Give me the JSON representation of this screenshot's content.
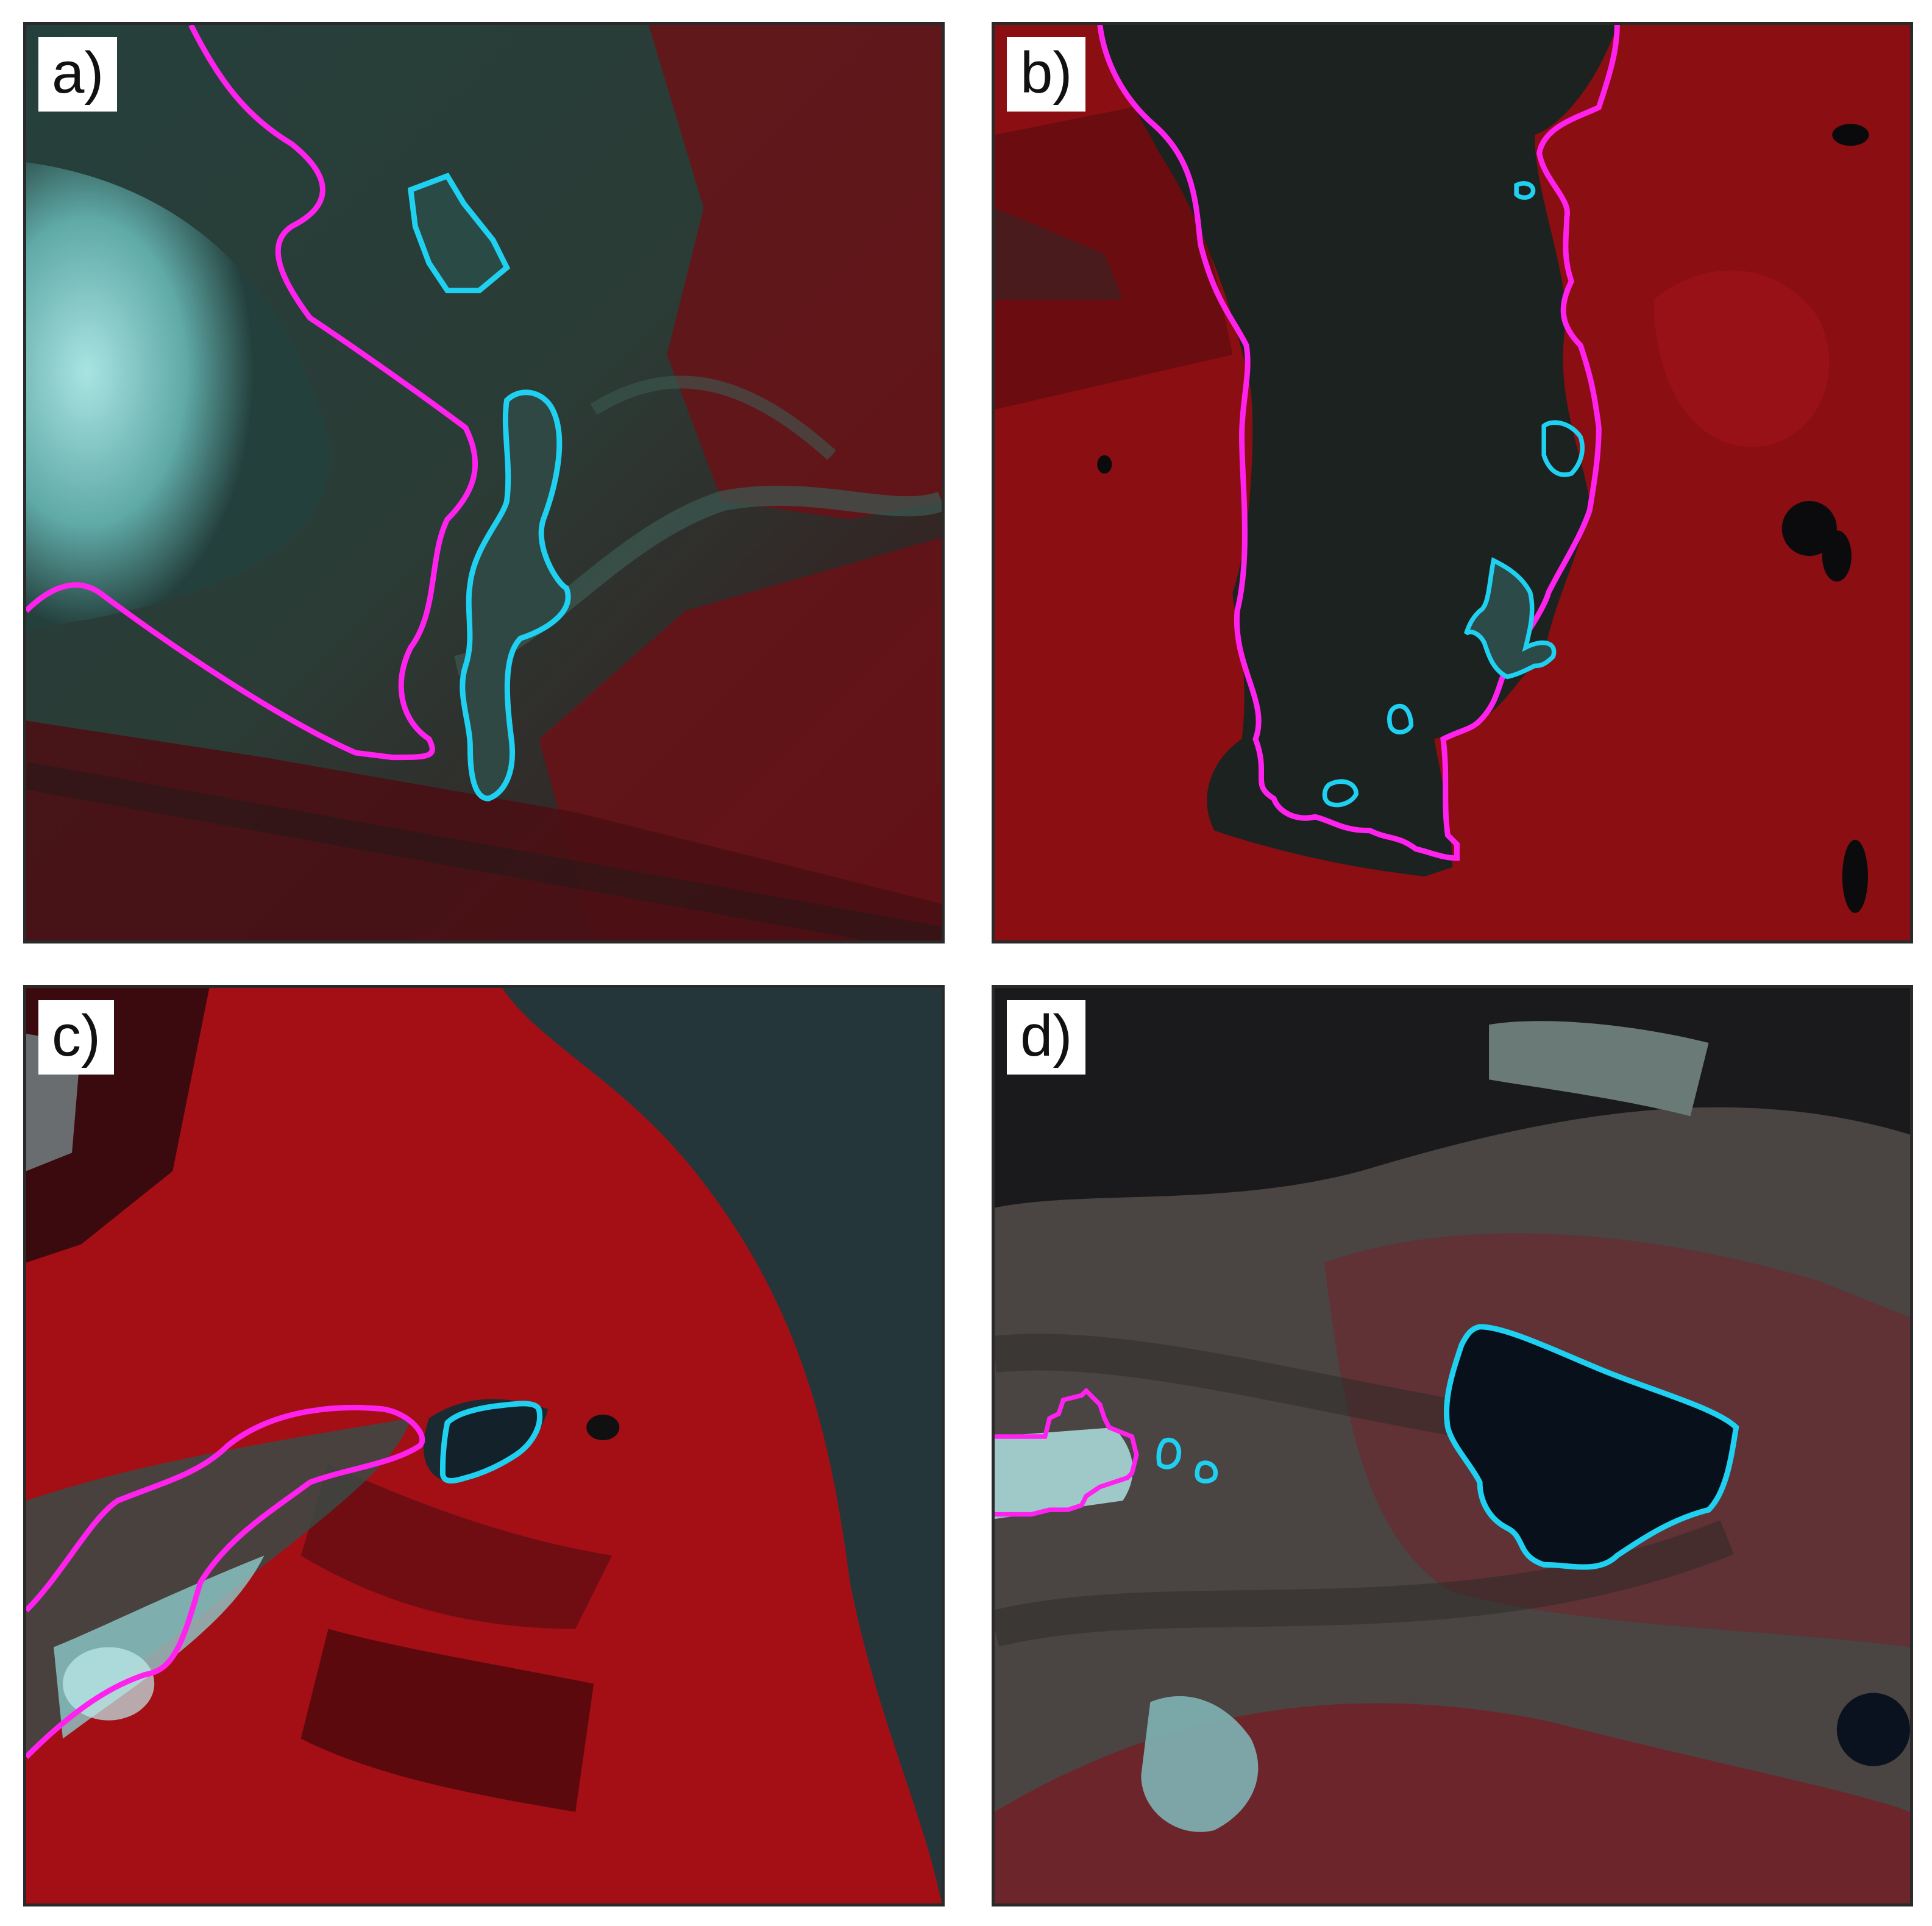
{
  "figure": {
    "panels": [
      {
        "id": "a",
        "label": "a)"
      },
      {
        "id": "b",
        "label": "b)"
      },
      {
        "id": "c",
        "label": "c)"
      },
      {
        "id": "d",
        "label": "d)"
      }
    ],
    "colors": {
      "glacier_outline": "#ff22ee",
      "lake_outline": "#1fd0f0",
      "vegetation": "#9a0d12",
      "ice": "#8fd9d9",
      "water_dark": "#0b1620",
      "sediment": "#2f3f3a"
    }
  }
}
